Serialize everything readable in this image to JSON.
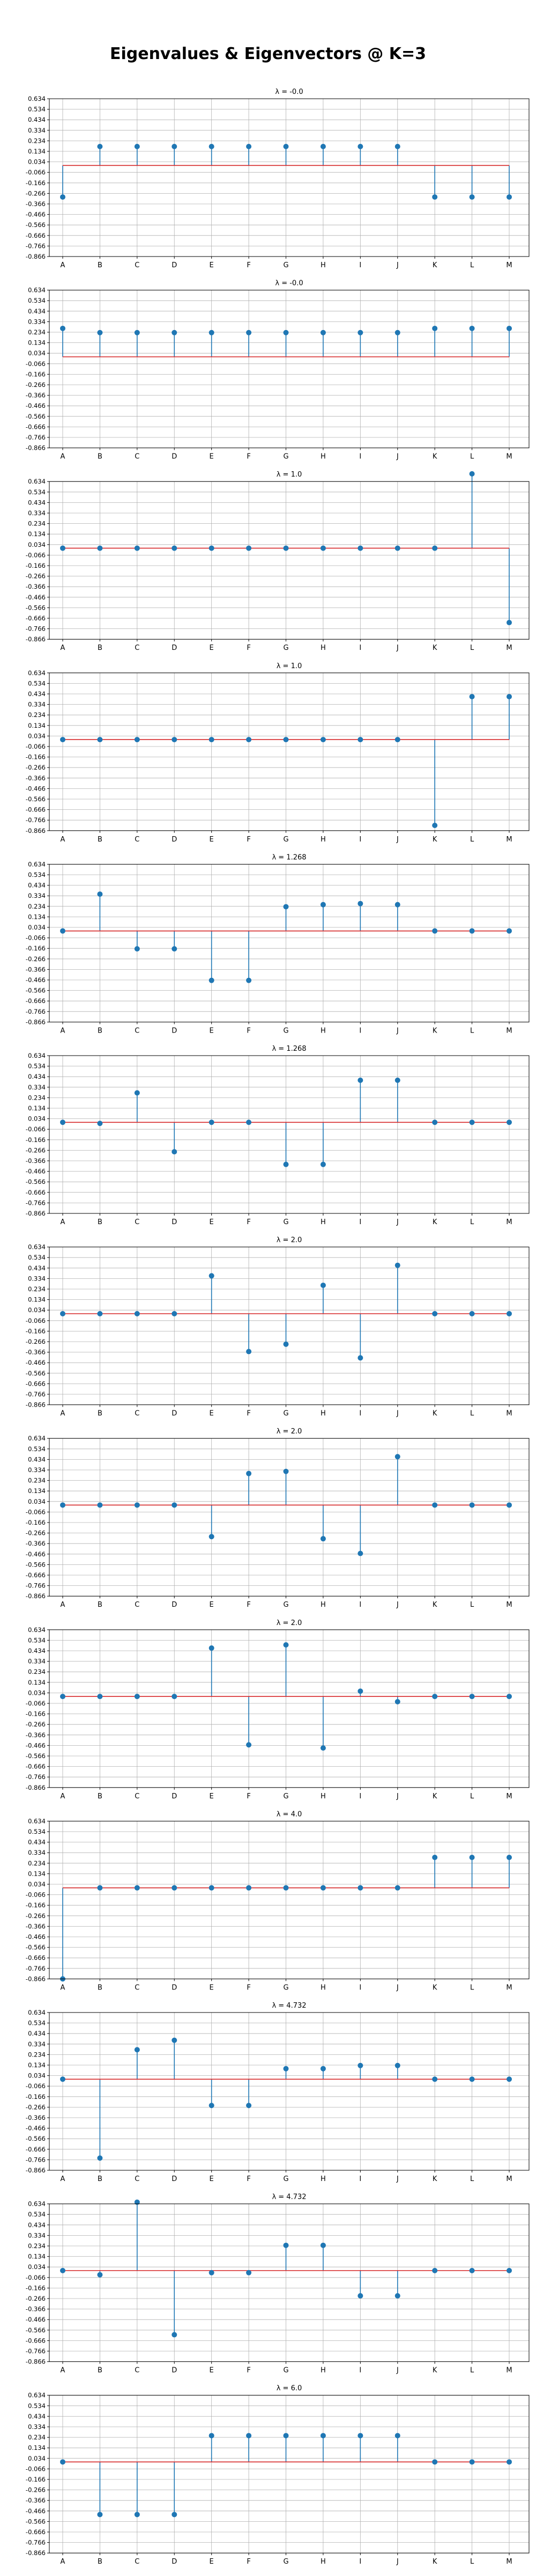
{
  "figure": {
    "title": "Eigenvalues & Eigenvectors @ K=3"
  },
  "chart_data": [
    {
      "type": "stem",
      "title": "λ = -0.0",
      "categories": [
        "A",
        "B",
        "C",
        "D",
        "E",
        "F",
        "G",
        "H",
        "I",
        "J",
        "K",
        "L",
        "M"
      ],
      "values": [
        -0.3,
        0.18,
        0.18,
        0.18,
        0.18,
        0.18,
        0.18,
        0.18,
        0.18,
        0.18,
        -0.3,
        -0.3,
        -0.3
      ],
      "baseline": 0.0,
      "ylim": [
        -0.866,
        0.634
      ],
      "yticks": [
        "0.634",
        "0.534",
        "0.434",
        "0.334",
        "0.234",
        "0.134",
        "0.034",
        "-0.066",
        "-0.166",
        "-0.266",
        "-0.366",
        "-0.466",
        "-0.566",
        "-0.666",
        "-0.766",
        "-0.866"
      ],
      "grid": true
    },
    {
      "type": "stem",
      "title": "λ = -0.0",
      "categories": [
        "A",
        "B",
        "C",
        "D",
        "E",
        "F",
        "G",
        "H",
        "I",
        "J",
        "K",
        "L",
        "M"
      ],
      "values": [
        0.27,
        0.23,
        0.23,
        0.23,
        0.23,
        0.23,
        0.23,
        0.23,
        0.23,
        0.23,
        0.27,
        0.27,
        0.27
      ],
      "baseline": 0.0,
      "ylim": [
        -0.866,
        0.634
      ],
      "yticks": [
        "0.634",
        "0.534",
        "0.434",
        "0.334",
        "0.234",
        "0.134",
        "0.034",
        "-0.066",
        "-0.166",
        "-0.266",
        "-0.366",
        "-0.466",
        "-0.566",
        "-0.666",
        "-0.766",
        "-0.866"
      ],
      "grid": true
    },
    {
      "type": "stem",
      "title": "λ = 1.0",
      "categories": [
        "A",
        "B",
        "C",
        "D",
        "E",
        "F",
        "G",
        "H",
        "I",
        "J",
        "K",
        "L",
        "M"
      ],
      "values": [
        0.0,
        0.0,
        0.0,
        0.0,
        0.0,
        0.0,
        0.0,
        0.0,
        0.0,
        0.0,
        0.0,
        0.707,
        -0.707
      ],
      "baseline": 0.0,
      "ylim": [
        -0.866,
        0.634
      ],
      "yticks": [
        "0.634",
        "0.534",
        "0.434",
        "0.334",
        "0.234",
        "0.134",
        "0.034",
        "-0.066",
        "-0.166",
        "-0.266",
        "-0.366",
        "-0.466",
        "-0.566",
        "-0.666",
        "-0.766",
        "-0.866"
      ],
      "grid": true
    },
    {
      "type": "stem",
      "title": "λ = 1.0",
      "categories": [
        "A",
        "B",
        "C",
        "D",
        "E",
        "F",
        "G",
        "H",
        "I",
        "J",
        "K",
        "L",
        "M"
      ],
      "values": [
        0.0,
        0.0,
        0.0,
        0.0,
        0.0,
        0.0,
        0.0,
        0.0,
        0.0,
        0.0,
        -0.816,
        0.408,
        0.408
      ],
      "baseline": 0.0,
      "ylim": [
        -0.866,
        0.634
      ],
      "yticks": [
        "0.634",
        "0.534",
        "0.434",
        "0.334",
        "0.234",
        "0.134",
        "0.034",
        "-0.066",
        "-0.166",
        "-0.266",
        "-0.366",
        "-0.466",
        "-0.566",
        "-0.666",
        "-0.766",
        "-0.866"
      ],
      "grid": true
    },
    {
      "type": "stem",
      "title": "λ = 1.268",
      "categories": [
        "A",
        "B",
        "C",
        "D",
        "E",
        "F",
        "G",
        "H",
        "I",
        "J",
        "K",
        "L",
        "M"
      ],
      "values": [
        0.0,
        0.35,
        -0.17,
        -0.17,
        -0.47,
        -0.47,
        0.23,
        0.25,
        0.26,
        0.25,
        0.0,
        0.0,
        0.0
      ],
      "baseline": 0.0,
      "ylim": [
        -0.866,
        0.634
      ],
      "yticks": [
        "0.634",
        "0.534",
        "0.434",
        "0.334",
        "0.234",
        "0.134",
        "0.034",
        "-0.066",
        "-0.166",
        "-0.266",
        "-0.366",
        "-0.466",
        "-0.566",
        "-0.666",
        "-0.766",
        "-0.866"
      ],
      "grid": true
    },
    {
      "type": "stem",
      "title": "λ = 1.268",
      "categories": [
        "A",
        "B",
        "C",
        "D",
        "E",
        "F",
        "G",
        "H",
        "I",
        "J",
        "K",
        "L",
        "M"
      ],
      "values": [
        0.0,
        -0.01,
        0.28,
        -0.28,
        0.0,
        0.0,
        -0.4,
        -0.4,
        0.4,
        0.4,
        0.0,
        0.0,
        0.0
      ],
      "baseline": 0.0,
      "ylim": [
        -0.866,
        0.634
      ],
      "yticks": [
        "0.634",
        "0.534",
        "0.434",
        "0.334",
        "0.234",
        "0.134",
        "0.034",
        "-0.066",
        "-0.166",
        "-0.266",
        "-0.366",
        "-0.466",
        "-0.566",
        "-0.666",
        "-0.766",
        "-0.866"
      ],
      "grid": true
    },
    {
      "type": "stem",
      "title": "λ = 2.0",
      "categories": [
        "A",
        "B",
        "C",
        "D",
        "E",
        "F",
        "G",
        "H",
        "I",
        "J",
        "K",
        "L",
        "M"
      ],
      "values": [
        0.0,
        0.0,
        0.0,
        0.0,
        0.36,
        -0.36,
        -0.29,
        0.27,
        -0.42,
        0.46,
        0.0,
        0.0,
        0.0
      ],
      "baseline": 0.0,
      "ylim": [
        -0.866,
        0.634
      ],
      "yticks": [
        "0.634",
        "0.534",
        "0.434",
        "0.334",
        "0.234",
        "0.134",
        "0.034",
        "-0.066",
        "-0.166",
        "-0.266",
        "-0.366",
        "-0.466",
        "-0.566",
        "-0.666",
        "-0.766",
        "-0.866"
      ],
      "grid": true
    },
    {
      "type": "stem",
      "title": "λ = 2.0",
      "categories": [
        "A",
        "B",
        "C",
        "D",
        "E",
        "F",
        "G",
        "H",
        "I",
        "J",
        "K",
        "L",
        "M"
      ],
      "values": [
        0.0,
        0.0,
        0.0,
        0.0,
        -0.3,
        0.3,
        0.32,
        -0.32,
        -0.46,
        0.46,
        0.0,
        0.0,
        0.0
      ],
      "baseline": 0.0,
      "ylim": [
        -0.866,
        0.634
      ],
      "yticks": [
        "0.634",
        "0.534",
        "0.434",
        "0.334",
        "0.234",
        "0.134",
        "0.034",
        "-0.066",
        "-0.166",
        "-0.266",
        "-0.366",
        "-0.466",
        "-0.566",
        "-0.666",
        "-0.766",
        "-0.866"
      ],
      "grid": true
    },
    {
      "type": "stem",
      "title": "λ = 2.0",
      "categories": [
        "A",
        "B",
        "C",
        "D",
        "E",
        "F",
        "G",
        "H",
        "I",
        "J",
        "K",
        "L",
        "M"
      ],
      "values": [
        0.0,
        0.0,
        0.0,
        0.0,
        0.46,
        -0.46,
        0.49,
        -0.49,
        0.05,
        -0.05,
        0.0,
        0.0,
        0.0
      ],
      "baseline": 0.0,
      "ylim": [
        -0.866,
        0.634
      ],
      "yticks": [
        "0.634",
        "0.534",
        "0.434",
        "0.334",
        "0.234",
        "0.134",
        "0.034",
        "-0.066",
        "-0.166",
        "-0.266",
        "-0.366",
        "-0.466",
        "-0.566",
        "-0.666",
        "-0.766",
        "-0.866"
      ],
      "grid": true
    },
    {
      "type": "stem",
      "title": "λ = 4.0",
      "categories": [
        "A",
        "B",
        "C",
        "D",
        "E",
        "F",
        "G",
        "H",
        "I",
        "J",
        "K",
        "L",
        "M"
      ],
      "values": [
        -0.866,
        0.0,
        0.0,
        0.0,
        0.0,
        0.0,
        0.0,
        0.0,
        0.0,
        0.0,
        0.289,
        0.289,
        0.289
      ],
      "baseline": 0.0,
      "ylim": [
        -0.866,
        0.634
      ],
      "yticks": [
        "0.634",
        "0.534",
        "0.434",
        "0.334",
        "0.234",
        "0.134",
        "0.034",
        "-0.066",
        "-0.166",
        "-0.266",
        "-0.366",
        "-0.466",
        "-0.566",
        "-0.666",
        "-0.766",
        "-0.866"
      ],
      "grid": true
    },
    {
      "type": "stem",
      "title": "λ = 4.732",
      "categories": [
        "A",
        "B",
        "C",
        "D",
        "E",
        "F",
        "G",
        "H",
        "I",
        "J",
        "K",
        "L",
        "M"
      ],
      "values": [
        0.0,
        -0.75,
        0.28,
        0.37,
        -0.25,
        -0.25,
        0.1,
        0.1,
        0.13,
        0.13,
        0.0,
        0.0,
        0.0
      ],
      "baseline": 0.0,
      "ylim": [
        -0.866,
        0.634
      ],
      "yticks": [
        "0.634",
        "0.534",
        "0.434",
        "0.334",
        "0.234",
        "0.134",
        "0.034",
        "-0.066",
        "-0.166",
        "-0.266",
        "-0.366",
        "-0.466",
        "-0.566",
        "-0.666",
        "-0.766",
        "-0.866"
      ],
      "grid": true
    },
    {
      "type": "stem",
      "title": "λ = 4.732",
      "categories": [
        "A",
        "B",
        "C",
        "D",
        "E",
        "F",
        "G",
        "H",
        "I",
        "J",
        "K",
        "L",
        "M"
      ],
      "values": [
        0.0,
        -0.04,
        0.65,
        -0.61,
        -0.02,
        -0.02,
        0.24,
        0.24,
        -0.24,
        -0.24,
        0.0,
        0.0,
        0.0
      ],
      "baseline": 0.0,
      "ylim": [
        -0.866,
        0.634
      ],
      "yticks": [
        "0.634",
        "0.534",
        "0.434",
        "0.334",
        "0.234",
        "0.134",
        "0.034",
        "-0.066",
        "-0.166",
        "-0.266",
        "-0.366",
        "-0.466",
        "-0.566",
        "-0.666",
        "-0.766",
        "-0.866"
      ],
      "grid": true
    },
    {
      "type": "stem",
      "title": "λ = 6.0",
      "categories": [
        "A",
        "B",
        "C",
        "D",
        "E",
        "F",
        "G",
        "H",
        "I",
        "J",
        "K",
        "L",
        "M"
      ],
      "values": [
        0.0,
        -0.5,
        -0.5,
        -0.5,
        0.25,
        0.25,
        0.25,
        0.25,
        0.25,
        0.25,
        0.0,
        0.0,
        0.0
      ],
      "baseline": 0.0,
      "ylim": [
        -0.866,
        0.634
      ],
      "yticks": [
        "0.634",
        "0.534",
        "0.434",
        "0.334",
        "0.234",
        "0.134",
        "0.034",
        "-0.066",
        "-0.166",
        "-0.266",
        "-0.366",
        "-0.466",
        "-0.566",
        "-0.666",
        "-0.766",
        "-0.866"
      ],
      "grid": true
    }
  ],
  "colors": {
    "stem": "#1f77b4",
    "baseline": "#d62728",
    "grid": "#b0b0b0",
    "axis": "#000000"
  }
}
